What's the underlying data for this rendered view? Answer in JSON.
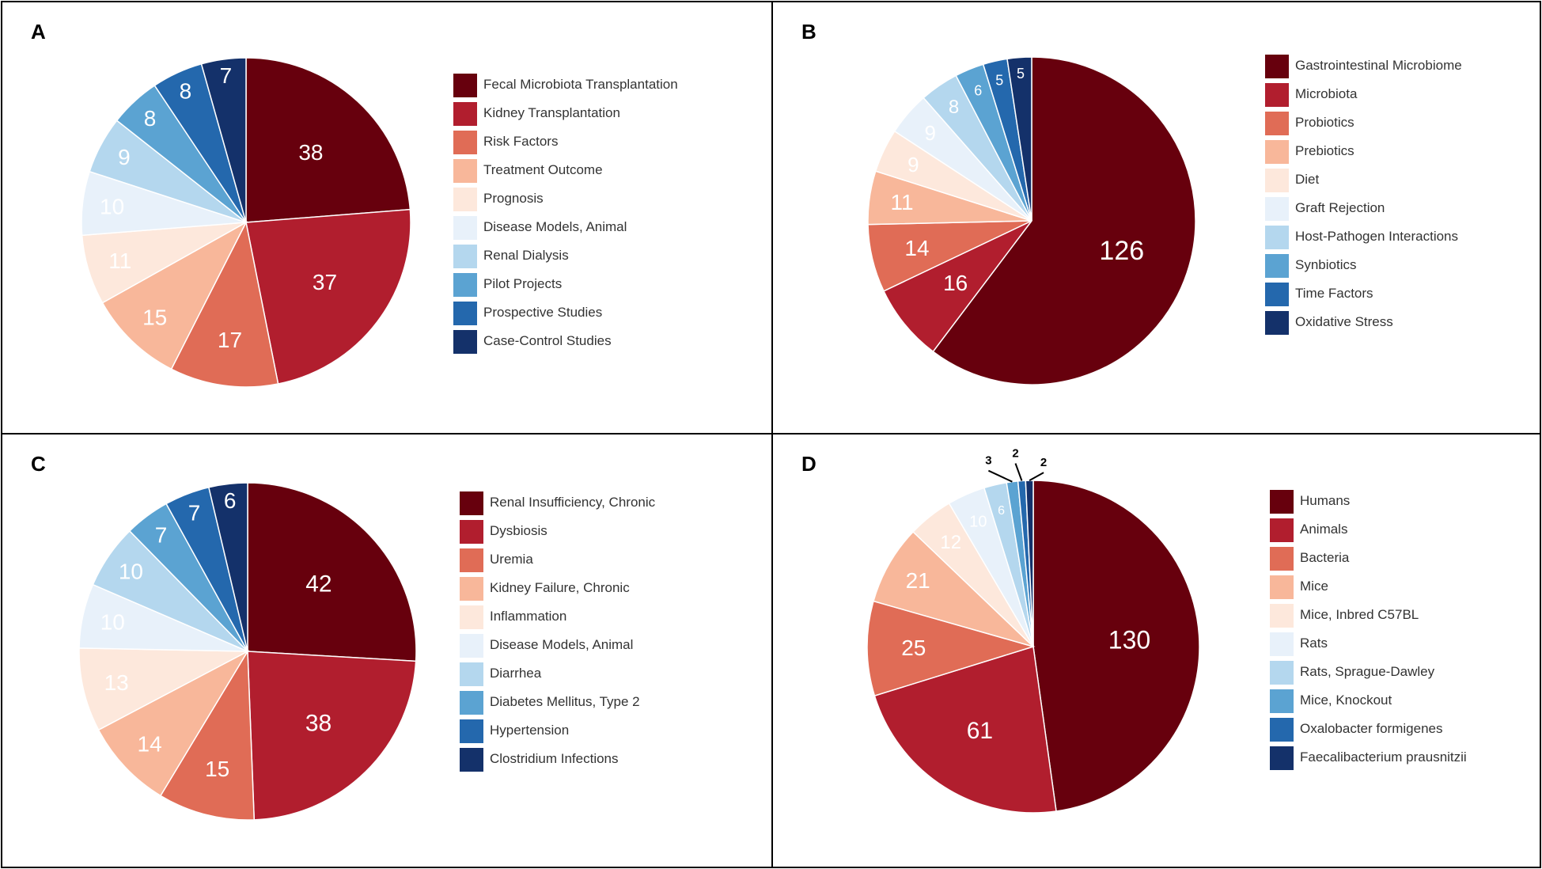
{
  "palette": [
    "#67000d",
    "#b11e2e",
    "#e06c56",
    "#f8b79a",
    "#fde8dc",
    "#e8f1fa",
    "#b4d7ee",
    "#5ba3d2",
    "#2468ad",
    "#14316a"
  ],
  "chart_data": [
    {
      "panel": "A",
      "type": "pie",
      "categories": [
        "Fecal Microbiota Transplantation",
        "Kidney Transplantation",
        "Risk Factors",
        "Treatment Outcome",
        "Prognosis",
        "Disease Models, Animal",
        "Renal Dialysis",
        "Pilot Projects",
        "Prospective Studies",
        "Case-Control Studies"
      ],
      "values": [
        38,
        37,
        17,
        15,
        11,
        10,
        9,
        8,
        8,
        7
      ],
      "labels": [
        "38",
        "37",
        "17",
        "15",
        "11",
        "10",
        "9",
        "8",
        "8",
        "7"
      ]
    },
    {
      "panel": "B",
      "type": "pie",
      "categories": [
        "Gastrointestinal Microbiome",
        "Microbiota",
        "Probiotics",
        "Prebiotics",
        "Diet",
        "Graft Rejection",
        "Host-Pathogen Interactions",
        "Synbiotics",
        "Time Factors",
        "Oxidative Stress"
      ],
      "values": [
        126,
        16,
        14,
        11,
        9,
        9,
        8,
        6,
        5,
        5
      ],
      "labels": [
        "126",
        "16",
        "14",
        "11",
        "9",
        "9",
        "8",
        "6",
        "5",
        "5"
      ]
    },
    {
      "panel": "C",
      "type": "pie",
      "categories": [
        "Renal Insufficiency, Chronic",
        "Dysbiosis",
        "Uremia",
        "Kidney Failure, Chronic",
        "Inflammation",
        "Disease Models, Animal",
        "Diarrhea",
        "Diabetes Mellitus, Type 2",
        "Hypertension",
        "Clostridium Infections"
      ],
      "values": [
        42,
        38,
        15,
        14,
        13,
        10,
        10,
        7,
        7,
        6
      ],
      "labels": [
        "42",
        "38",
        "15",
        "14",
        "13",
        "10",
        "10",
        "7",
        "7",
        "6"
      ]
    },
    {
      "panel": "D",
      "type": "pie",
      "categories": [
        "Humans",
        "Animals",
        "Bacteria",
        "Mice",
        "Mice, Inbred C57BL",
        "Rats",
        "Rats, Sprague-Dawley",
        "Mice, Knockout",
        "Oxalobacter formigenes",
        "Faecalibacterium prausnitzii"
      ],
      "values": [
        130,
        61,
        25,
        21,
        12,
        10,
        6,
        3,
        2,
        2
      ],
      "labels": [
        "130",
        "61",
        "25",
        "21",
        "12",
        "10",
        "6",
        "3",
        "2",
        "2"
      ]
    }
  ]
}
